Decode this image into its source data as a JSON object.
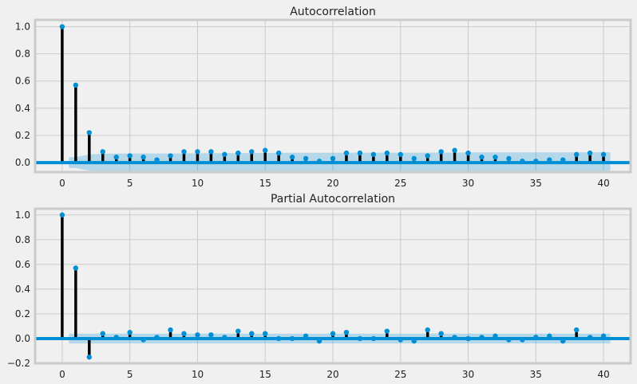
{
  "chart_data": [
    {
      "type": "stem",
      "title": "Autocorrelation",
      "xlim": [
        -2,
        42
      ],
      "ylim": [
        -0.07,
        1.05
      ],
      "xticks": [
        0,
        5,
        10,
        15,
        20,
        25,
        30,
        35,
        40
      ],
      "yticks": [
        0.0,
        0.2,
        0.4,
        0.6,
        0.8,
        1.0
      ],
      "ytick_labels": [
        "0.0",
        "0.2",
        "0.4",
        "0.6",
        "0.8",
        "1.0"
      ],
      "grid": true,
      "x": [
        0,
        1,
        2,
        3,
        4,
        5,
        6,
        7,
        8,
        9,
        10,
        11,
        12,
        13,
        14,
        15,
        16,
        17,
        18,
        19,
        20,
        21,
        22,
        23,
        24,
        25,
        26,
        27,
        28,
        29,
        30,
        31,
        32,
        33,
        34,
        35,
        36,
        37,
        38,
        39,
        40
      ],
      "values": [
        1.0,
        0.57,
        0.22,
        0.08,
        0.04,
        0.05,
        0.04,
        0.02,
        0.05,
        0.08,
        0.08,
        0.08,
        0.06,
        0.07,
        0.08,
        0.09,
        0.07,
        0.04,
        0.03,
        0.01,
        0.03,
        0.07,
        0.07,
        0.06,
        0.07,
        0.06,
        0.03,
        0.05,
        0.08,
        0.09,
        0.07,
        0.04,
        0.04,
        0.03,
        0.01,
        0.01,
        0.02,
        0.02,
        0.06,
        0.07,
        0.06
      ],
      "conf_upper": [
        0.0,
        0.04,
        0.06,
        0.065,
        0.066,
        0.067,
        0.067,
        0.067,
        0.067,
        0.068,
        0.068,
        0.069,
        0.069,
        0.07,
        0.07,
        0.071,
        0.072,
        0.072,
        0.072,
        0.072,
        0.072,
        0.072,
        0.073,
        0.073,
        0.073,
        0.073,
        0.073,
        0.073,
        0.074,
        0.074,
        0.075,
        0.075,
        0.075,
        0.075,
        0.075,
        0.075,
        0.075,
        0.075,
        0.075,
        0.076,
        0.076
      ],
      "colors": {
        "stem": "#000000",
        "marker": "#008fd5",
        "zero_line": "#008fd5",
        "band": "#008fd5",
        "grid": "#cbcbcb",
        "spine": "#cbcbcb"
      }
    },
    {
      "type": "stem",
      "title": "Partial Autocorrelation",
      "xlim": [
        -2,
        42
      ],
      "ylim": [
        -0.2,
        1.05
      ],
      "xticks": [
        0,
        5,
        10,
        15,
        20,
        25,
        30,
        35,
        40
      ],
      "yticks": [
        -0.2,
        0.0,
        0.2,
        0.4,
        0.6,
        0.8,
        1.0
      ],
      "ytick_labels": [
        "−0.2",
        "0.0",
        "0.2",
        "0.4",
        "0.6",
        "0.8",
        "1.0"
      ],
      "grid": true,
      "x": [
        0,
        1,
        2,
        3,
        4,
        5,
        6,
        7,
        8,
        9,
        10,
        11,
        12,
        13,
        14,
        15,
        16,
        17,
        18,
        19,
        20,
        21,
        22,
        23,
        24,
        25,
        26,
        27,
        28,
        29,
        30,
        31,
        32,
        33,
        34,
        35,
        36,
        37,
        38,
        39,
        40
      ],
      "values": [
        1.0,
        0.57,
        -0.15,
        0.04,
        0.01,
        0.05,
        -0.01,
        0.01,
        0.07,
        0.04,
        0.03,
        0.03,
        0.01,
        0.06,
        0.04,
        0.04,
        0.0,
        0.0,
        0.02,
        -0.02,
        0.04,
        0.05,
        0.0,
        0.0,
        0.06,
        -0.01,
        -0.02,
        0.07,
        0.04,
        0.01,
        0.0,
        0.01,
        0.02,
        -0.01,
        -0.01,
        0.01,
        0.02,
        -0.02,
        0.07,
        0.01,
        0.02
      ],
      "conf_upper": [
        0.0,
        0.04,
        0.04,
        0.04,
        0.04,
        0.04,
        0.04,
        0.04,
        0.04,
        0.04,
        0.04,
        0.04,
        0.04,
        0.04,
        0.04,
        0.04,
        0.04,
        0.04,
        0.04,
        0.04,
        0.04,
        0.04,
        0.04,
        0.04,
        0.04,
        0.04,
        0.04,
        0.04,
        0.04,
        0.04,
        0.04,
        0.04,
        0.04,
        0.04,
        0.04,
        0.04,
        0.04,
        0.04,
        0.04,
        0.04,
        0.04
      ],
      "colors": {
        "stem": "#000000",
        "marker": "#008fd5",
        "zero_line": "#008fd5",
        "band": "#008fd5",
        "grid": "#cbcbcb",
        "spine": "#cbcbcb"
      }
    }
  ]
}
